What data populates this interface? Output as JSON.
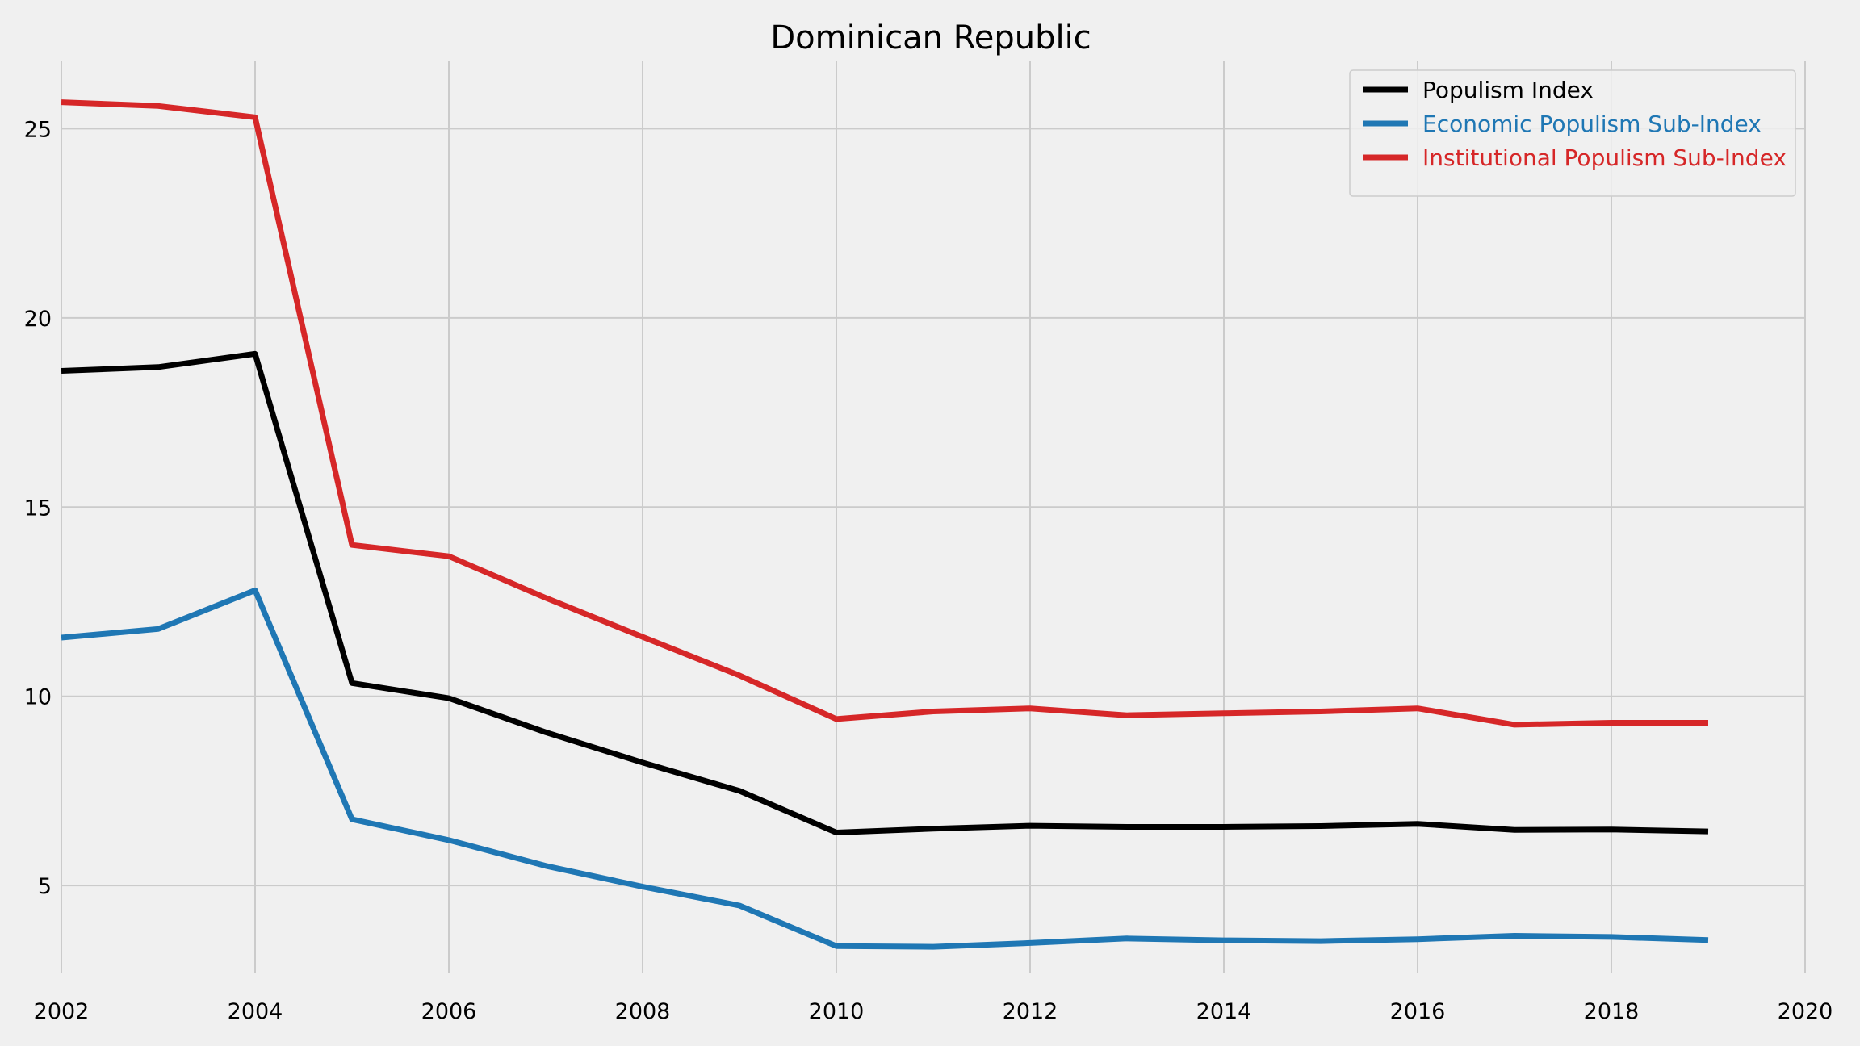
{
  "chart_data": {
    "type": "line",
    "title": "Dominican Republic",
    "xlabel": "",
    "ylabel": "",
    "xlim": [
      2002,
      2020
    ],
    "ylim": [
      2.7,
      26.8
    ],
    "x_ticks": [
      2002,
      2004,
      2006,
      2008,
      2010,
      2012,
      2014,
      2016,
      2018,
      2020
    ],
    "y_ticks": [
      5,
      10,
      15,
      20,
      25
    ],
    "grid": true,
    "legend_position": "top-right",
    "x": [
      2002,
      2003,
      2004,
      2005,
      2006,
      2007,
      2008,
      2009,
      2010,
      2011,
      2012,
      2013,
      2014,
      2015,
      2016,
      2017,
      2018,
      2019
    ],
    "series": [
      {
        "name": "Populism Index",
        "color": "#000000",
        "values": [
          18.6,
          18.7,
          19.05,
          10.35,
          9.95,
          9.05,
          8.25,
          7.5,
          6.4,
          6.5,
          6.58,
          6.55,
          6.55,
          6.57,
          6.63,
          6.47,
          6.48,
          6.43
        ]
      },
      {
        "name": "Economic Populism Sub-Index",
        "color": "#1f77b4",
        "values": [
          11.55,
          11.78,
          12.8,
          6.75,
          6.2,
          5.52,
          4.97,
          4.47,
          3.4,
          3.38,
          3.48,
          3.6,
          3.55,
          3.53,
          3.58,
          3.67,
          3.64,
          3.56
        ]
      },
      {
        "name": "Institutional Populism Sub-Index",
        "color": "#d62728",
        "values": [
          25.7,
          25.6,
          25.3,
          14.0,
          13.7,
          12.6,
          11.57,
          10.55,
          9.4,
          9.6,
          9.68,
          9.5,
          9.55,
          9.6,
          9.68,
          9.25,
          9.3,
          9.3
        ]
      }
    ]
  }
}
